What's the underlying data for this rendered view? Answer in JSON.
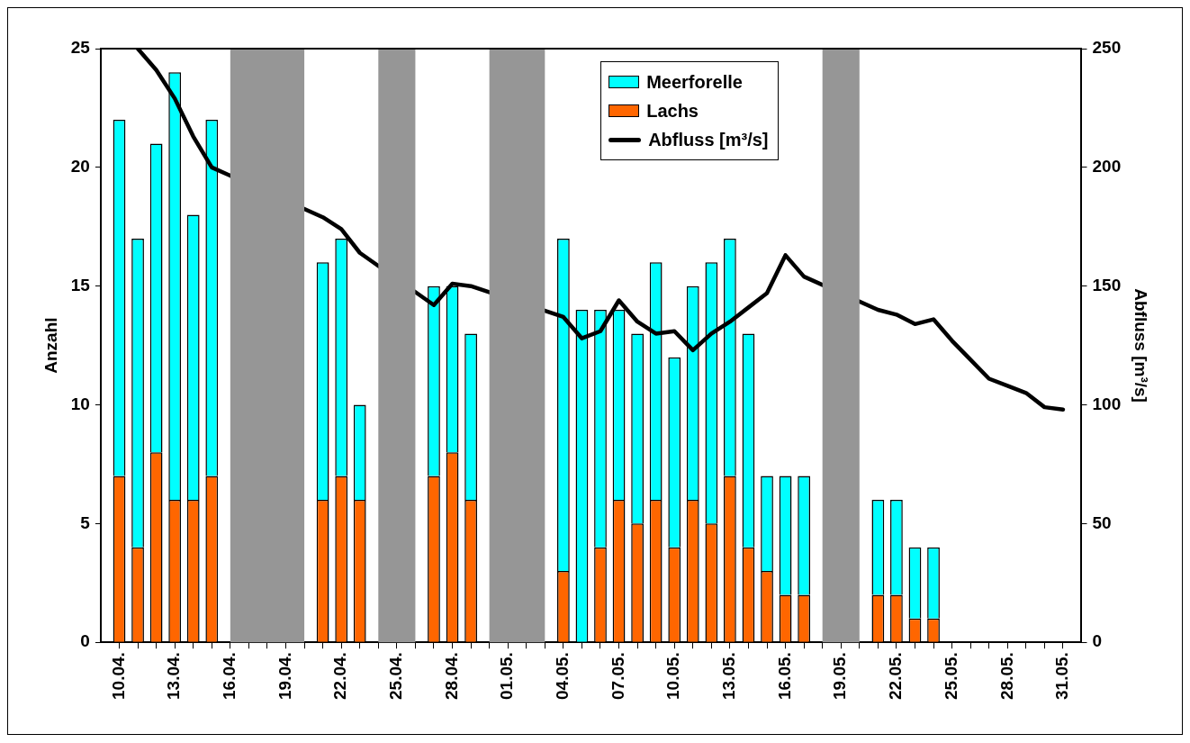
{
  "chart_data": {
    "type": "bar",
    "stacked": true,
    "x": [
      "--04-10",
      "--04-11",
      "--04-12",
      "--04-13",
      "--04-14",
      "--04-15",
      "--04-16",
      "--04-17",
      "--04-18",
      "--04-19",
      "--04-20",
      "--04-21",
      "--04-22",
      "--04-23",
      "--04-24",
      "--04-25",
      "--04-26",
      "--04-27",
      "--04-28",
      "--04-29",
      "--04-30",
      "--05-01",
      "--05-02",
      "--05-03",
      "--05-04",
      "--05-05",
      "--05-06",
      "--05-07",
      "--05-08",
      "--05-09",
      "--05-10",
      "--05-11",
      "--05-12",
      "--05-13",
      "--05-14",
      "--05-15",
      "--05-16",
      "--05-17",
      "--05-18",
      "--05-19",
      "--05-20",
      "--05-21",
      "--05-22",
      "--05-23",
      "--05-24",
      "--05-25",
      "--05-26",
      "--05-27",
      "--05-28",
      "--05-29",
      "--05-30",
      "--05-31"
    ],
    "xlim": [
      "--04-09",
      "--06-01"
    ],
    "xticks": [
      {
        "value": "--04-10",
        "label": "10.04."
      },
      {
        "value": "--04-11",
        "label": null
      },
      {
        "value": "--04-12",
        "label": null
      },
      {
        "value": "--04-13",
        "label": "13.04."
      },
      {
        "value": "--04-14",
        "label": null
      },
      {
        "value": "--04-15",
        "label": null
      },
      {
        "value": "--04-16",
        "label": "16.04."
      },
      {
        "value": "--04-17",
        "label": null
      },
      {
        "value": "--04-18",
        "label": null
      },
      {
        "value": "--04-19",
        "label": "19.04."
      },
      {
        "value": "--04-20",
        "label": null
      },
      {
        "value": "--04-21",
        "label": null
      },
      {
        "value": "--04-22",
        "label": "22.04."
      },
      {
        "value": "--04-23",
        "label": null
      },
      {
        "value": "--04-24",
        "label": null
      },
      {
        "value": "--04-25",
        "label": "25.04."
      },
      {
        "value": "--04-26",
        "label": null
      },
      {
        "value": "--04-27",
        "label": null
      },
      {
        "value": "--04-28",
        "label": "28.04."
      },
      {
        "value": "--04-29",
        "label": null
      },
      {
        "value": "--04-30",
        "label": null
      },
      {
        "value": "--05-01",
        "label": "01.05."
      },
      {
        "value": "--05-02",
        "label": null
      },
      {
        "value": "--05-03",
        "label": null
      },
      {
        "value": "--05-04",
        "label": "04.05."
      },
      {
        "value": "--05-05",
        "label": null
      },
      {
        "value": "--05-06",
        "label": null
      },
      {
        "value": "--05-07",
        "label": "07.05."
      },
      {
        "value": "--05-08",
        "label": null
      },
      {
        "value": "--05-09",
        "label": null
      },
      {
        "value": "--05-10",
        "label": "10.05."
      },
      {
        "value": "--05-11",
        "label": null
      },
      {
        "value": "--05-12",
        "label": null
      },
      {
        "value": "--05-13",
        "label": "13.05."
      },
      {
        "value": "--05-14",
        "label": null
      },
      {
        "value": "--05-15",
        "label": null
      },
      {
        "value": "--05-16",
        "label": "16.05."
      },
      {
        "value": "--05-17",
        "label": null
      },
      {
        "value": "--05-18",
        "label": null
      },
      {
        "value": "--05-19",
        "label": "19.05."
      },
      {
        "value": "--05-20",
        "label": null
      },
      {
        "value": "--05-21",
        "label": null
      },
      {
        "value": "--05-22",
        "label": "22.05."
      },
      {
        "value": "--05-23",
        "label": null
      },
      {
        "value": "--05-24",
        "label": null
      },
      {
        "value": "--05-25",
        "label": "25.05."
      },
      {
        "value": "--05-26",
        "label": null
      },
      {
        "value": "--05-27",
        "label": null
      },
      {
        "value": "--05-28",
        "label": "28.05."
      },
      {
        "value": "--05-29",
        "label": null
      },
      {
        "value": "--05-30",
        "label": null
      },
      {
        "value": "--05-31",
        "label": "31.05."
      }
    ],
    "ylim": [
      0,
      25
    ],
    "yticks": [
      0,
      5,
      10,
      15,
      20,
      25
    ],
    "y2lim": [
      0,
      250
    ],
    "y2ticks": [
      0,
      50,
      100,
      150,
      200,
      250
    ],
    "ylabel": "Anzahl",
    "y2label": "Abfluss [m³/s]",
    "grid": false,
    "legend": "top",
    "bands": [
      {
        "axis": "x",
        "from": "--04-16",
        "to": "--04-20",
        "color": "#969696"
      },
      {
        "axis": "x",
        "from": "--04-24",
        "to": "--04-26",
        "color": "#969696"
      },
      {
        "axis": "x",
        "from": "--04-30",
        "to": "--05-03",
        "color": "#969696"
      },
      {
        "axis": "x",
        "from": "--05-18",
        "to": "--05-20",
        "color": "#969696"
      }
    ],
    "series": [
      {
        "name": "Lachs",
        "color": "#ff6600",
        "values": [
          7,
          4,
          8,
          6,
          6,
          7,
          null,
          null,
          null,
          null,
          null,
          6,
          7,
          6,
          null,
          null,
          null,
          7,
          8,
          6,
          null,
          null,
          null,
          null,
          3,
          0,
          4,
          6,
          5,
          6,
          4,
          6,
          5,
          7,
          4,
          3,
          2,
          2,
          null,
          null,
          null,
          2,
          2,
          1,
          1,
          null,
          null,
          null,
          null,
          null,
          null,
          null
        ]
      },
      {
        "name": "Meerforelle",
        "color": "#00ffff",
        "values": [
          15,
          13,
          13,
          18,
          12,
          15,
          null,
          null,
          null,
          null,
          null,
          10,
          10,
          4,
          null,
          null,
          null,
          8,
          7,
          7,
          null,
          null,
          null,
          null,
          14,
          14,
          10,
          8,
          8,
          10,
          8,
          9,
          11,
          10,
          9,
          4,
          5,
          5,
          null,
          null,
          null,
          4,
          4,
          3,
          3,
          null,
          null,
          null,
          null,
          null,
          null,
          null
        ]
      },
      {
        "name": "Abfluss [m³/s]",
        "type": "line",
        "axis": "y2",
        "color": "#000000",
        "values": [
          null,
          250,
          241,
          229,
          213,
          200,
          null,
          null,
          null,
          null,
          null,
          179,
          174,
          164,
          null,
          null,
          null,
          142,
          151,
          150,
          null,
          null,
          null,
          null,
          137,
          128,
          131,
          144,
          135,
          130,
          131,
          123,
          130,
          135,
          141,
          147,
          163,
          154,
          null,
          null,
          null,
          140,
          138,
          134,
          136,
          127,
          119,
          111,
          108,
          105,
          99,
          98
        ]
      }
    ]
  }
}
